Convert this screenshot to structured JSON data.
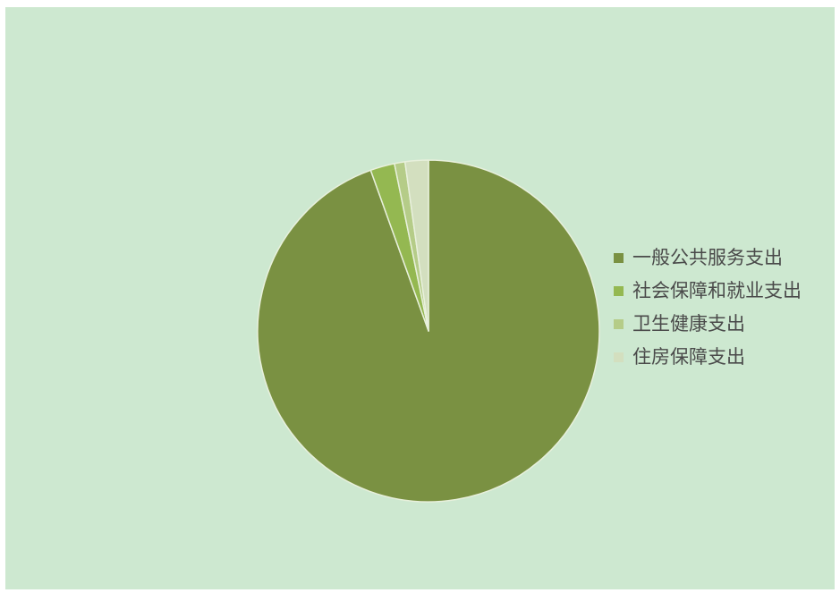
{
  "chart_data": {
    "type": "pie",
    "categories": [
      "一般公共服务支出",
      "社会保障和就业支出",
      "卫生健康支出",
      "住房保障支出"
    ],
    "values": [
      94.5,
      2.3,
      1.0,
      2.2
    ],
    "colors": [
      "#7a9142",
      "#94b851",
      "#b5cc88",
      "#d3dfbf"
    ],
    "title": "",
    "legend_position": "right",
    "slice_border_color": "#e8f0dc",
    "background_color": "#cde8d0"
  }
}
